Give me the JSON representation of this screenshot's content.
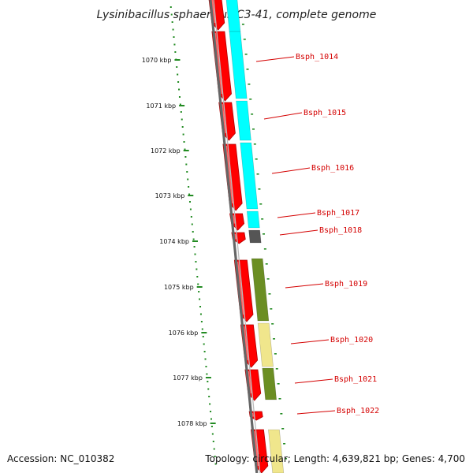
{
  "title": "Lysinibacillus sphaericus C3-41, complete genome",
  "accession": "Accession: NC_010382",
  "topology": "Topology: circular; Length: 4,639,821 bp; Genes: 4,700",
  "colors": {
    "cds": "#ff0000",
    "cog_cyan": "#00ffff",
    "cog_olive": "#6b8e23",
    "cog_khaki": "#f0e68c",
    "cog_gray": "#555555",
    "backbone": "#777777",
    "ticks": "#228b22",
    "label": "#d40000"
  },
  "axis_ticks": [
    "1070 kbp",
    "1071 kbp",
    "1072 kbp",
    "1073 kbp",
    "1074 kbp",
    "1075 kbp",
    "1076 kbp",
    "1077 kbp",
    "1078 kbp"
  ],
  "gene_labels": [
    "Bsph_1014",
    "Bsph_1015",
    "Bsph_1016",
    "Bsph_1017",
    "Bsph_1018",
    "Bsph_1019",
    "Bsph_1020",
    "Bsph_1021",
    "Bsph_1022"
  ]
}
